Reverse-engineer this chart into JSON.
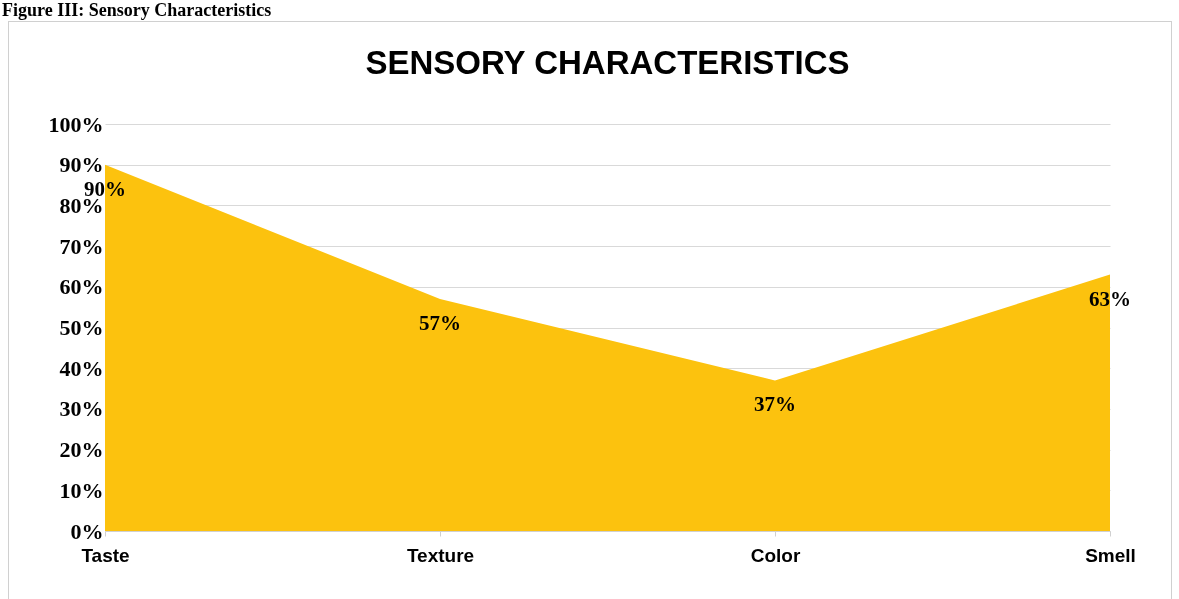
{
  "chart_data": {
    "type": "area",
    "title": "SENSORY CHARACTERISTICS",
    "annotations": [
      "Figure III: Sensory Characteristics"
    ],
    "categories": [
      "Taste",
      "Texture",
      "Color",
      "Smell"
    ],
    "values": [
      90,
      57,
      37,
      63
    ],
    "color": "#fcc20e",
    "value_labels": [
      "90%",
      "57%",
      "37%",
      "63%"
    ],
    "ylim": [
      0,
      100
    ],
    "yticks": [
      {
        "value": 0,
        "label": "0%"
      },
      {
        "value": 10,
        "label": "10%"
      },
      {
        "value": 20,
        "label": "20%"
      },
      {
        "value": 30,
        "label": "30%"
      },
      {
        "value": 40,
        "label": "40%"
      },
      {
        "value": 50,
        "label": "50%"
      },
      {
        "value": 60,
        "label": "60%"
      },
      {
        "value": 70,
        "label": "70%"
      },
      {
        "value": 80,
        "label": "80%"
      },
      {
        "value": 90,
        "label": "90%"
      },
      {
        "value": 100,
        "label": "100%"
      }
    ],
    "grid": "y"
  }
}
